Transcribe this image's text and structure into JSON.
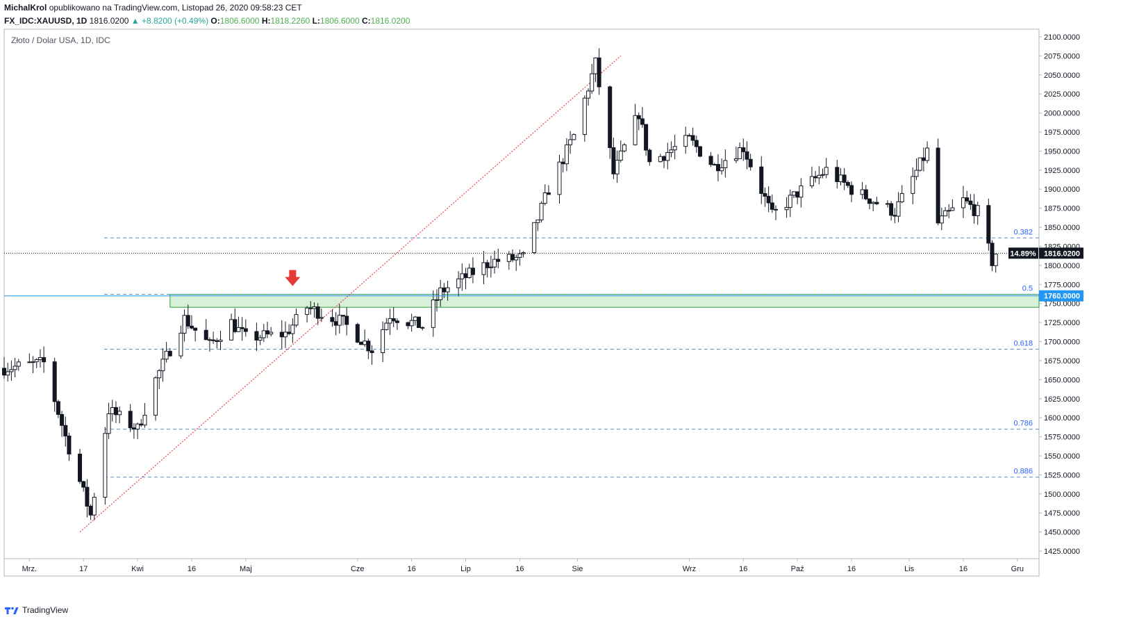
{
  "header": {
    "author": "MichalKrol",
    "published": "opublikowano na TradingView.com, Listopad 26, 2020 09:58:23 CET",
    "symbol": "FX_IDC:XAUUSD, 1D",
    "last": "1816.0200",
    "change": "▲ +8.8200 (+0.49%)",
    "o_label": "O:",
    "o": "1806.6000",
    "h_label": "H:",
    "h": "1818.2260",
    "l_label": "L:",
    "l": "1806.6000",
    "c_label": "C:",
    "c": "1816.0200"
  },
  "footer": {
    "brand": "TradingView",
    "logo_icon": "tradingview-logo-icon"
  },
  "colors": {
    "fib_line": "#5b8fd6",
    "fib_text": "#2962ff",
    "zone_fill": "#d8f0d8",
    "zone_border": "#4caf50",
    "trend_line": "#e84545",
    "arrow": "#e53935",
    "support_line": "#2196f3",
    "axis_text": "#131722"
  },
  "chart_data": {
    "type": "candlestick",
    "title": "Złoto / Dolar USA, 1D, IDC",
    "ylim": [
      1415,
      2110
    ],
    "yticks": [
      1425,
      1450,
      1475,
      1500,
      1525,
      1550,
      1575,
      1600,
      1625,
      1650,
      1675,
      1700,
      1725,
      1750,
      1775,
      1800,
      1825,
      1850,
      1875,
      1900,
      1925,
      1950,
      1975,
      2000,
      2025,
      2050,
      2075,
      2100
    ],
    "ytick_format": "4 decimals",
    "x_start": "2020-02-24",
    "x_end": "2020-12-07",
    "xticks": [
      {
        "label": "Mrz.",
        "date": "2020-03-02"
      },
      {
        "label": "17",
        "date": "2020-03-17"
      },
      {
        "label": "Kwi",
        "date": "2020-04-01"
      },
      {
        "label": "16",
        "date": "2020-04-16"
      },
      {
        "label": "Maj",
        "date": "2020-05-01"
      },
      {
        "label": "Cze",
        "date": "2020-06-01"
      },
      {
        "label": "16",
        "date": "2020-06-16"
      },
      {
        "label": "Lip",
        "date": "2020-07-01"
      },
      {
        "label": "16",
        "date": "2020-07-16"
      },
      {
        "label": "Sie",
        "date": "2020-08-01"
      },
      {
        "label": "Wrz",
        "date": "2020-09-01"
      },
      {
        "label": "16",
        "date": "2020-09-16"
      },
      {
        "label": "Paź",
        "date": "2020-10-01"
      },
      {
        "label": "16",
        "date": "2020-10-16"
      },
      {
        "label": "Lis",
        "date": "2020-11-01"
      },
      {
        "label": "16",
        "date": "2020-11-16"
      },
      {
        "label": "Gru",
        "date": "2020-12-01"
      }
    ],
    "fib_levels": [
      {
        "label": "0.382",
        "value": 1836
      },
      {
        "label": "0.5",
        "value": 1762
      },
      {
        "label": "0.618",
        "value": 1690
      },
      {
        "label": "0.786",
        "value": 1585
      },
      {
        "label": "0.886",
        "value": 1522
      }
    ],
    "current_price": {
      "value": 1816.02,
      "label": "1816.0200",
      "pct_label": "14.89%"
    },
    "support_price": {
      "value": 1760,
      "label": "1760.0000"
    },
    "zone": {
      "from_date": "2020-04-10",
      "to_date": "2020-12-07",
      "low": 1745,
      "high": 1762
    },
    "trend_line": {
      "from": {
        "date": "2020-03-16",
        "value": 1450
      },
      "to": {
        "date": "2020-08-13",
        "value": 2075
      }
    },
    "arrow": {
      "date": "2020-05-14",
      "value": 1772
    },
    "anchors": [
      {
        "date": "2020-02-24",
        "value": 1665
      },
      {
        "date": "2020-03-06",
        "value": 1672
      },
      {
        "date": "2020-03-12",
        "value": 1575
      },
      {
        "date": "2020-03-19",
        "value": 1472
      },
      {
        "date": "2020-03-24",
        "value": 1610
      },
      {
        "date": "2020-04-01",
        "value": 1585
      },
      {
        "date": "2020-04-06",
        "value": 1650
      },
      {
        "date": "2020-04-14",
        "value": 1730
      },
      {
        "date": "2020-04-21",
        "value": 1695
      },
      {
        "date": "2020-04-27",
        "value": 1725
      },
      {
        "date": "2020-05-01",
        "value": 1705
      },
      {
        "date": "2020-05-12",
        "value": 1710
      },
      {
        "date": "2020-05-18",
        "value": 1745
      },
      {
        "date": "2020-05-28",
        "value": 1725
      },
      {
        "date": "2020-06-05",
        "value": 1690
      },
      {
        "date": "2020-06-10",
        "value": 1735
      },
      {
        "date": "2020-06-19",
        "value": 1720
      },
      {
        "date": "2020-06-24",
        "value": 1765
      },
      {
        "date": "2020-07-08",
        "value": 1805
      },
      {
        "date": "2020-07-17",
        "value": 1810
      },
      {
        "date": "2020-07-24",
        "value": 1900
      },
      {
        "date": "2020-07-31",
        "value": 1970
      },
      {
        "date": "2020-08-06",
        "value": 2065
      },
      {
        "date": "2020-08-11",
        "value": 1920
      },
      {
        "date": "2020-08-18",
        "value": 2000
      },
      {
        "date": "2020-08-21",
        "value": 1935
      },
      {
        "date": "2020-09-01",
        "value": 1965
      },
      {
        "date": "2020-09-08",
        "value": 1930
      },
      {
        "date": "2020-09-16",
        "value": 1955
      },
      {
        "date": "2020-09-24",
        "value": 1865
      },
      {
        "date": "2020-10-01",
        "value": 1895
      },
      {
        "date": "2020-10-09",
        "value": 1925
      },
      {
        "date": "2020-10-16",
        "value": 1900
      },
      {
        "date": "2020-10-28",
        "value": 1870
      },
      {
        "date": "2020-11-06",
        "value": 1950
      },
      {
        "date": "2020-11-09",
        "value": 1855
      },
      {
        "date": "2020-11-16",
        "value": 1885
      },
      {
        "date": "2020-11-20",
        "value": 1870
      },
      {
        "date": "2020-11-24",
        "value": 1805
      },
      {
        "date": "2020-11-25",
        "value": 1816
      }
    ]
  }
}
